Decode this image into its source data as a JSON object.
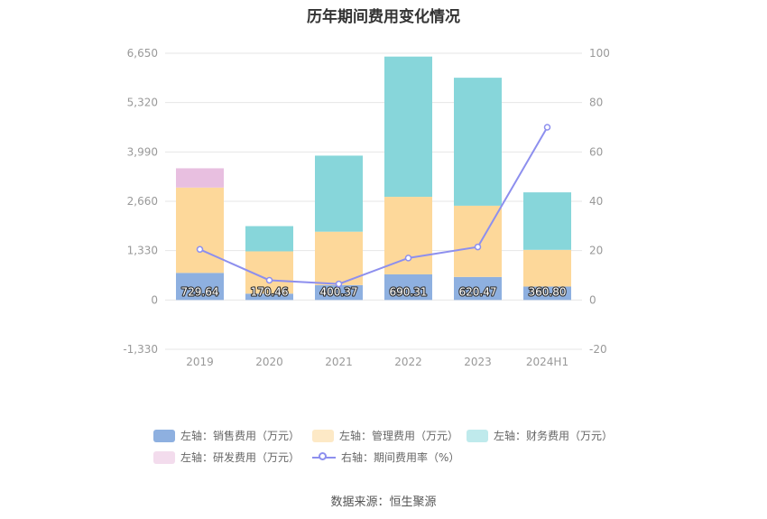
{
  "chart_title": "历年期间费用变化情况",
  "source": "数据来源：恒生聚源",
  "colors": {
    "sales": "#8eb0e0",
    "admin": "#fdd89a",
    "finance": "#87d6da",
    "rd": "#e8bfe0",
    "rate": "#8d8fee",
    "grid": "#e6e6e6",
    "axis_text": "#999999"
  },
  "legend": {
    "sales": "左轴：销售费用（万元）",
    "admin": "左轴：管理费用（万元）",
    "finance": "左轴：财务费用（万元）",
    "rd": "左轴：研发费用（万元）",
    "rate": "右轴：期间费用率（%）"
  },
  "chart_data": {
    "type": "bar",
    "stacked": true,
    "categories": [
      "2019",
      "2020",
      "2021",
      "2022",
      "2023",
      "2024H1"
    ],
    "left_axis": {
      "ylim": [
        -1330,
        6650
      ],
      "ticks": [
        -1330,
        0,
        1330,
        2660,
        3990,
        5320,
        6650
      ],
      "tick_labels": [
        "-1,330",
        "0",
        "1,330",
        "2,660",
        "3,990",
        "5,320",
        "6,650"
      ]
    },
    "right_axis": {
      "ylim": [
        -20,
        100
      ],
      "ticks": [
        -20,
        0,
        20,
        40,
        60,
        80,
        100
      ],
      "tick_labels": [
        "-20",
        "0",
        "20",
        "40",
        "60",
        "80",
        "100"
      ]
    },
    "series": [
      {
        "name": "左轴：销售费用（万元）",
        "key": "sales",
        "axis": "left",
        "values": [
          729.64,
          170.46,
          400.37,
          690.31,
          620.47,
          360.8
        ],
        "labels": [
          "729.64",
          "170.46",
          "400.37",
          "690.31",
          "620.47",
          "360.80"
        ]
      },
      {
        "name": "左轴：管理费用（万元）",
        "key": "admin",
        "axis": "left",
        "values": [
          2300,
          1140,
          1440,
          2090,
          1920,
          990
        ]
      },
      {
        "name": "左轴：财务费用（万元）",
        "key": "finance",
        "axis": "left",
        "values": [
          0,
          680,
          2050,
          3780,
          3450,
          1550
        ]
      },
      {
        "name": "左轴：研发费用（万元）",
        "key": "rd",
        "axis": "left",
        "values": [
          520,
          0,
          0,
          0,
          0,
          0
        ]
      },
      {
        "name": "右轴：期间费用率（%）",
        "key": "rate",
        "axis": "right",
        "type": "line",
        "values": [
          20.5,
          8,
          6.5,
          17,
          21.5,
          70
        ]
      }
    ],
    "grid": true,
    "legend_position": "bottom"
  }
}
